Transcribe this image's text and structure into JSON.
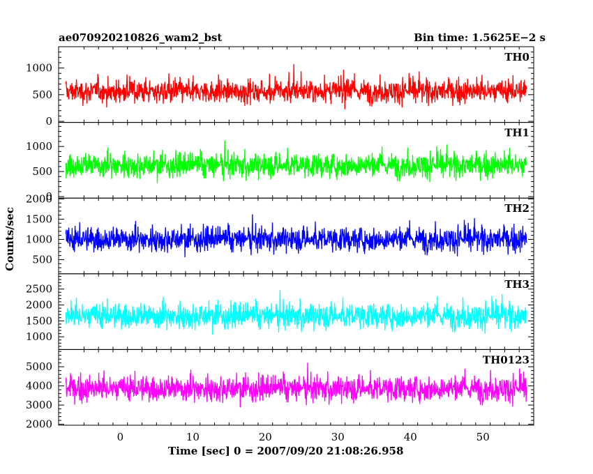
{
  "header": {
    "title_left": "ae070920210826_wam2_bst",
    "title_right": "Bin time: 1.5625E−2 s"
  },
  "chart_data": {
    "type": "line",
    "title": "ae070920210826_wam2_bst",
    "subtitle": "Bin time: 1.5625E−2 s",
    "xlabel": "Time [sec] 0 = 2007/09/20 21:08:26.958",
    "ylabel": "Counts/sec",
    "xlim": [
      -8.5,
      57
    ],
    "data_range": [
      -7.5,
      56
    ],
    "x_ticks": [
      0,
      10,
      20,
      30,
      40,
      50
    ],
    "grid": false,
    "legend": "none",
    "panels": [
      {
        "name": "TH0",
        "color": "#ff0000",
        "ylim": [
          -20,
          1400
        ],
        "y_ticks": [
          0,
          500,
          1000
        ],
        "mean": 560,
        "spread": 180,
        "min": 150,
        "max": 1380
      },
      {
        "name": "TH1",
        "color": "#00ff00",
        "ylim": [
          -30,
          1480
        ],
        "y_ticks": [
          0,
          500,
          1000
        ],
        "mean": 620,
        "spread": 200,
        "min": 120,
        "max": 1450
      },
      {
        "name": "TH2",
        "color": "#0000ff",
        "ylim": [
          150,
          2020
        ],
        "y_ticks": [
          500,
          1000,
          1500,
          2000
        ],
        "mean": 1000,
        "spread": 250,
        "min": 250,
        "max": 1950
      },
      {
        "name": "TH3",
        "color": "#00ffff",
        "ylim": [
          600,
          2980
        ],
        "y_ticks": [
          1000,
          1500,
          2000,
          2500
        ],
        "mean": 1650,
        "spread": 330,
        "min": 700,
        "max": 2950
      },
      {
        "name": "TH0123",
        "color": "#ff00ff",
        "ylim": [
          1950,
          5900
        ],
        "y_ticks": [
          2000,
          3000,
          4000,
          5000
        ],
        "mean": 3850,
        "spread": 550,
        "min": 2000,
        "max": 5800
      }
    ]
  }
}
